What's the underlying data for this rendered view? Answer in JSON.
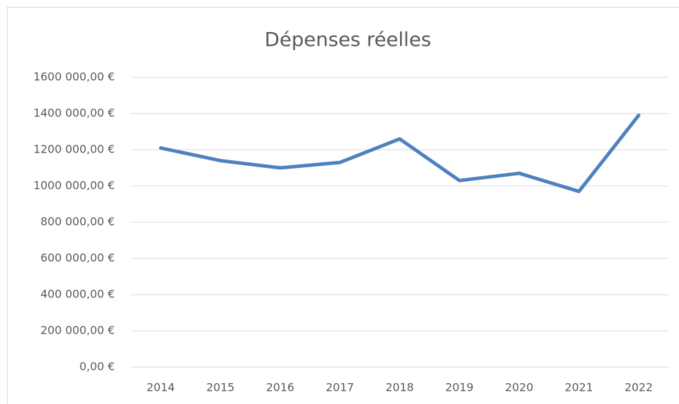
{
  "chart_data": {
    "type": "line",
    "title": "Dépenses réelles",
    "categories": [
      "2014",
      "2015",
      "2016",
      "2017",
      "2018",
      "2019",
      "2020",
      "2021",
      "2022"
    ],
    "series": [
      {
        "name": "Dépenses réelles",
        "color": "#4f81bd",
        "values": [
          1210000,
          1140000,
          1100000,
          1130000,
          1260000,
          1030000,
          1070000,
          970000,
          1390000
        ]
      }
    ],
    "ylim": [
      0,
      1600000
    ],
    "yticks": [
      {
        "value": 0,
        "label": "0,00 €"
      },
      {
        "value": 200000,
        "label": "200 000,00 €"
      },
      {
        "value": 400000,
        "label": "400 000,00 €"
      },
      {
        "value": 600000,
        "label": "600 000,00 €"
      },
      {
        "value": 800000,
        "label": "800 000,00 €"
      },
      {
        "value": 1000000,
        "label": "1000 000,00 €"
      },
      {
        "value": 1200000,
        "label": "1200 000,00 €"
      },
      {
        "value": 1400000,
        "label": "1400 000,00 €"
      },
      {
        "value": 1600000,
        "label": "1600 000,00 €"
      }
    ],
    "grid": true
  }
}
